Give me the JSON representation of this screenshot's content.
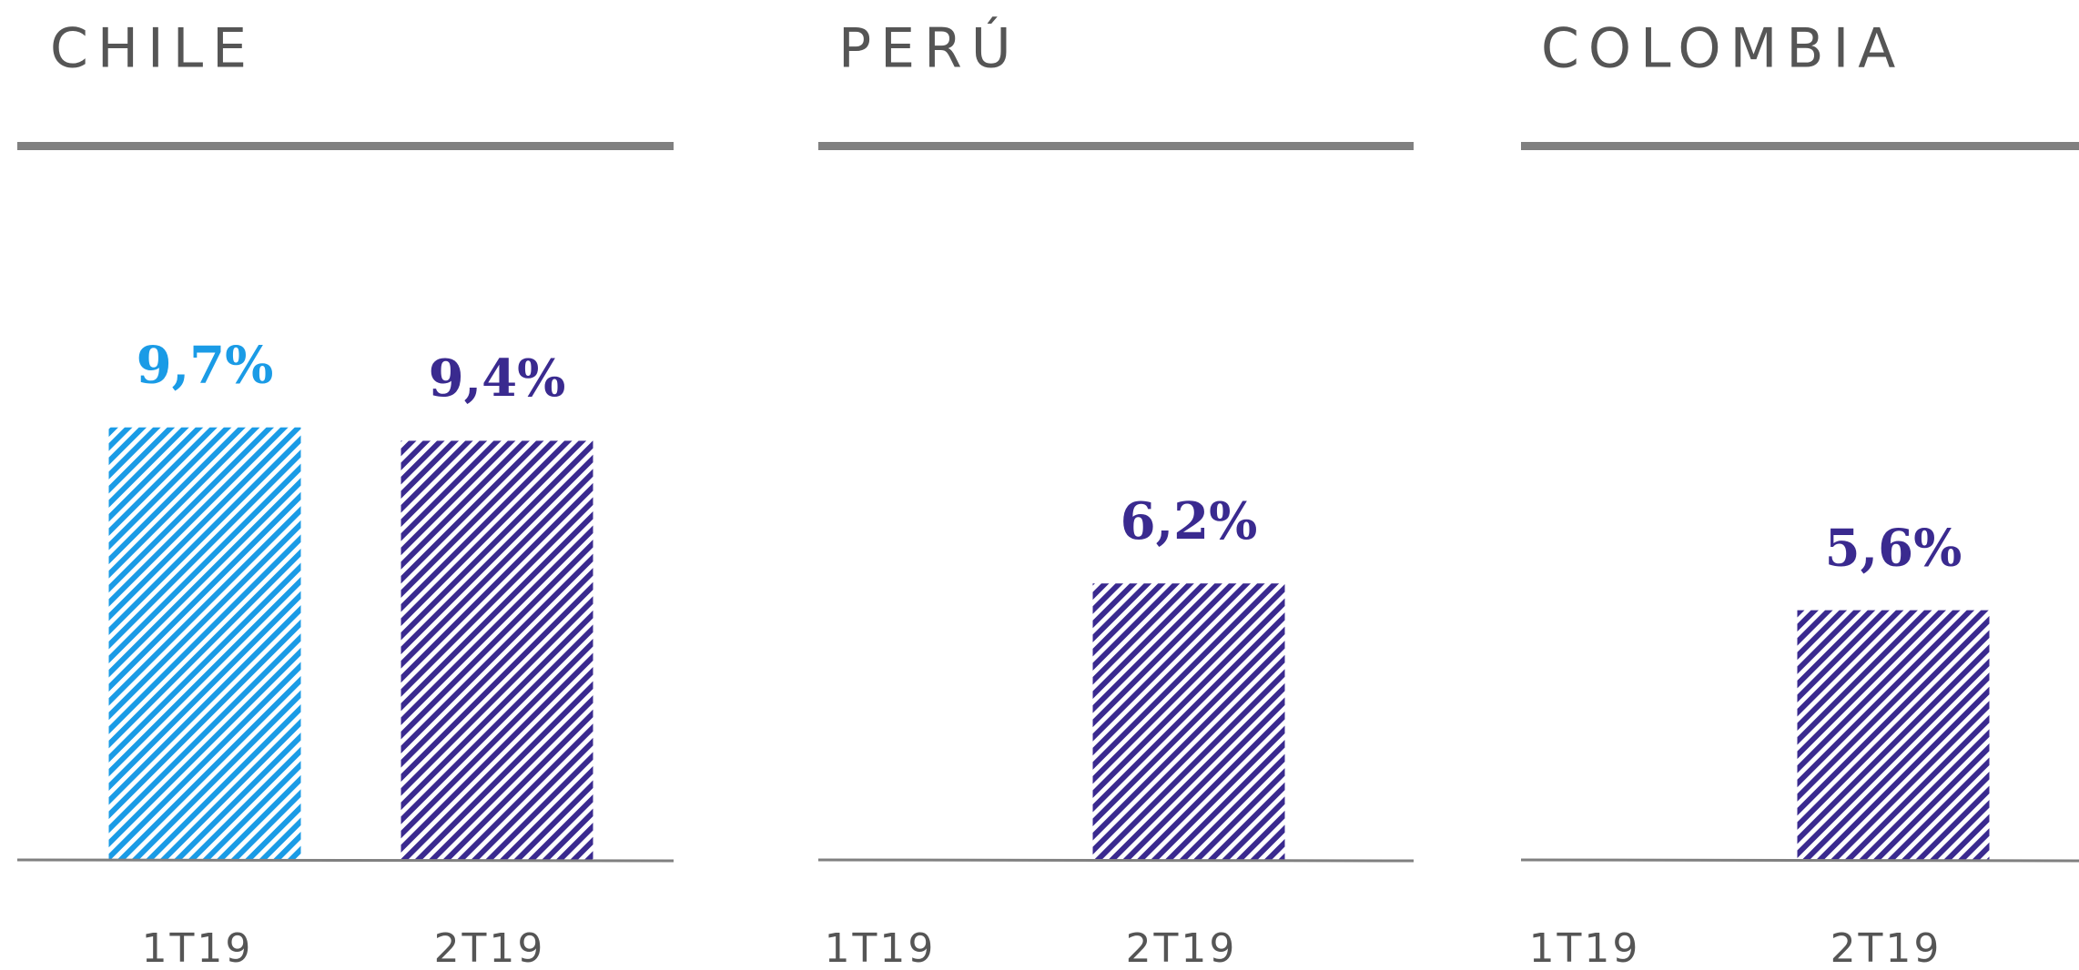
{
  "chart_data": [
    {
      "type": "bar",
      "title": "CHILE",
      "categories": [
        "1T19",
        "2T19"
      ],
      "values": [
        9.7,
        9.4
      ],
      "value_labels": [
        "9,7%",
        "9,4%"
      ],
      "colors": [
        "#1a9be6",
        "#3a2a8f"
      ]
    },
    {
      "type": "bar",
      "title": "PERÚ",
      "categories": [
        "1T19",
        "2T19"
      ],
      "values": [
        null,
        6.2
      ],
      "value_labels": [
        null,
        "6,2%"
      ],
      "colors": [
        "#1a9be6",
        "#3a2a8f"
      ]
    },
    {
      "type": "bar",
      "title": "COLOMBIA",
      "categories": [
        "1T19",
        "2T19"
      ],
      "values": [
        null,
        5.6
      ],
      "value_labels": [
        null,
        "5,6%"
      ],
      "colors": [
        "#1a9be6",
        "#3a2a8f"
      ]
    }
  ]
}
